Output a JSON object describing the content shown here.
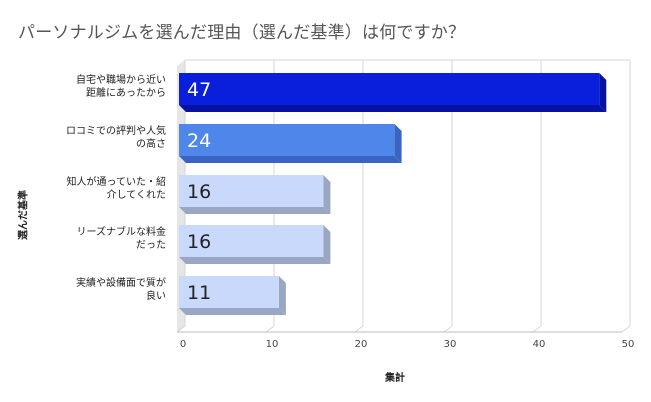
{
  "chart_data": {
    "type": "bar",
    "orientation": "horizontal",
    "title": "パーソナルジムを選んだ理由（選んだ基準）は何ですか？",
    "xlabel": "集計",
    "ylabel": "選んだ基準",
    "categories": [
      [
        "自宅や職場から近い",
        "距離にあったから"
      ],
      [
        "ロコミでの評判や人気",
        "の高さ"
      ],
      [
        "知人が通っていた・紹",
        "介してくれた"
      ],
      [
        "リーズナブルな料金",
        "だった"
      ],
      [
        "実績や設備面で質が",
        "良い"
      ]
    ],
    "values": [
      47,
      24,
      16,
      16,
      11
    ],
    "data_labels": [
      "47",
      "24",
      "16",
      "16",
      "11"
    ],
    "bar_colors": [
      "#0a1fdc",
      "#4f86ea",
      "#c9d9fb",
      "#c9d9fb",
      "#c9d9fb"
    ],
    "bar_side_colors": [
      "#0713a0",
      "#3a64c4",
      "#9aa7c4",
      "#9aa7c4",
      "#9aa7c4"
    ],
    "label_colors": [
      "#ffffff",
      "#ffffff",
      "#222222",
      "#222222",
      "#222222"
    ],
    "xlim": [
      0,
      50
    ],
    "xticks": [
      "0",
      "10",
      "20",
      "30",
      "40",
      "50"
    ],
    "grid": true
  }
}
